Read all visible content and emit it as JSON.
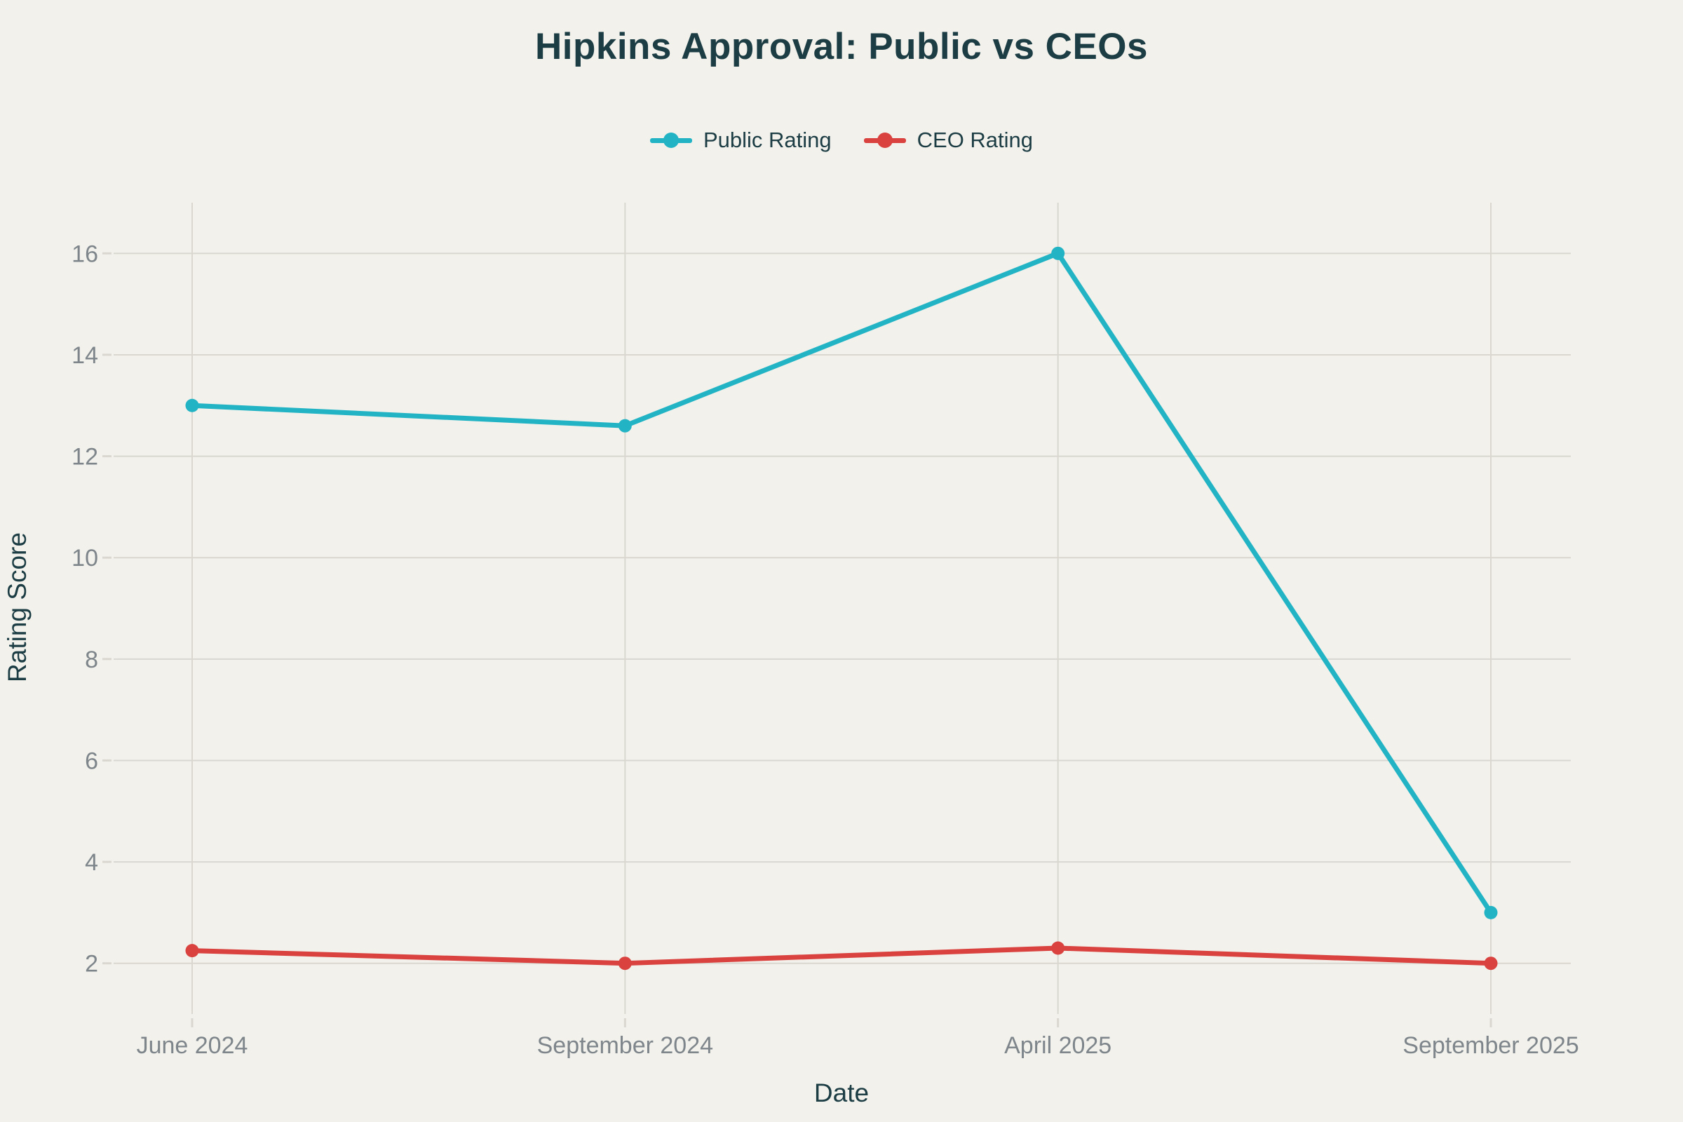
{
  "chart_data": {
    "type": "line",
    "title": "Hipkins Approval: Public vs CEOs",
    "xlabel": "Date",
    "ylabel": "Rating Score",
    "categories": [
      "June 2024",
      "September 2024",
      "April 2025",
      "September 2025"
    ],
    "series": [
      {
        "name": "Public Rating",
        "color": "#22b4c5",
        "values": [
          13,
          12.6,
          16,
          3
        ]
      },
      {
        "name": "CEO Rating",
        "color": "#d9423f",
        "values": [
          2.25,
          2,
          2.3,
          2
        ]
      }
    ],
    "y_ticks": [
      2,
      4,
      6,
      8,
      10,
      12,
      14,
      16
    ],
    "ylim": [
      1,
      17
    ],
    "grid": true,
    "legend_position": "top-center"
  },
  "colors": {
    "background": "#f2f1eb",
    "gridline": "#d9d7d0",
    "tick_label": "#7e868c",
    "text": "#1d3d45"
  }
}
